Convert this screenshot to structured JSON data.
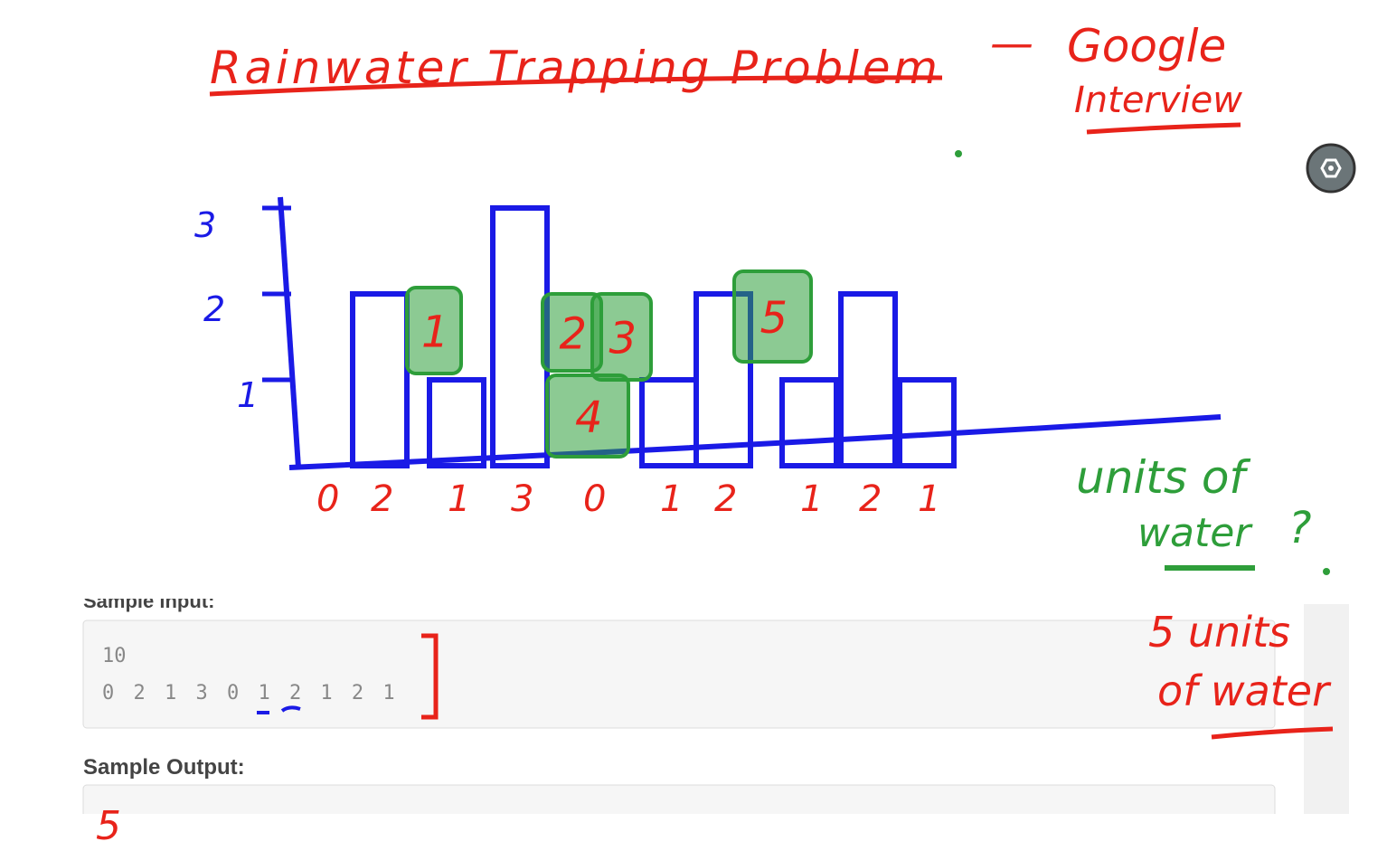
{
  "header": {
    "title": "Rainwater Trapping Problem",
    "dash": "—",
    "company": "Google",
    "subtitle": "Interview"
  },
  "drawing": {
    "yticks": [
      1,
      2,
      3
    ],
    "heights": [
      0,
      2,
      1,
      3,
      0,
      1,
      2,
      1,
      2,
      1
    ],
    "water_cells": [
      1,
      2,
      3,
      4,
      5
    ]
  },
  "question": {
    "line1": "units of",
    "line2": "water",
    "mark": "?"
  },
  "answer": {
    "line1": "5 units",
    "line2": "of water"
  },
  "sample": {
    "input_label": "Sample input:",
    "input_n": 10,
    "input_values": "0 2 1 3 0 1 2 1 2 1",
    "output_label": "Sample Output:",
    "output": 5
  }
}
